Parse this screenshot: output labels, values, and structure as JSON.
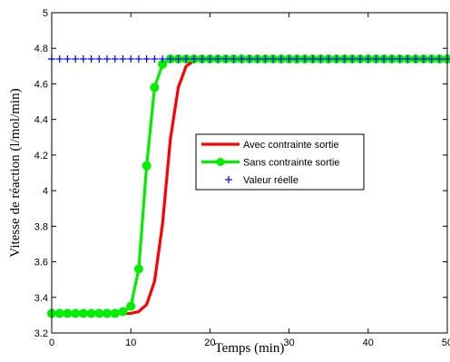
{
  "chart_data": {
    "type": "line",
    "title": "",
    "xlabel": "Temps (min)",
    "ylabel": "Vitesse de réaction (l/mol/min)",
    "xlim": [
      0,
      50
    ],
    "ylim": [
      3.2,
      5
    ],
    "xticks": [
      0,
      10,
      20,
      30,
      40,
      50
    ],
    "xtick_labels": [
      "0",
      "10",
      "20",
      "30",
      "40",
      "50"
    ],
    "yticks": [
      3.2,
      3.4,
      3.6,
      3.8,
      4,
      4.2,
      4.4,
      4.6,
      4.8,
      5
    ],
    "ytick_labels": [
      "3.2",
      "3.4",
      "3.6",
      "3.8",
      "4",
      "4.2",
      "4.4",
      "4.6",
      "4.8",
      "5"
    ],
    "grid": false,
    "legend_position": "center-right",
    "series": [
      {
        "name": "Avec contrainte sortie",
        "color": "#ff0000",
        "marker": "none",
        "x": [
          0,
          1,
          2,
          3,
          4,
          5,
          6,
          7,
          8,
          9,
          10,
          11,
          12,
          13,
          14,
          15,
          16,
          17,
          18,
          19,
          20,
          21,
          22,
          23,
          24,
          25,
          26,
          27,
          28,
          29,
          30,
          31,
          32,
          33,
          34,
          35,
          36,
          37,
          38,
          39,
          40,
          41,
          42,
          43,
          44,
          45,
          46,
          47,
          48,
          49,
          50
        ],
        "y": [
          3.31,
          3.31,
          3.31,
          3.31,
          3.31,
          3.31,
          3.31,
          3.31,
          3.31,
          3.31,
          3.31,
          3.32,
          3.36,
          3.49,
          3.81,
          4.29,
          4.58,
          4.7,
          4.73,
          4.74,
          4.74,
          4.74,
          4.74,
          4.74,
          4.74,
          4.74,
          4.74,
          4.74,
          4.74,
          4.74,
          4.74,
          4.74,
          4.74,
          4.74,
          4.74,
          4.74,
          4.74,
          4.74,
          4.74,
          4.74,
          4.74,
          4.74,
          4.74,
          4.74,
          4.74,
          4.74,
          4.74,
          4.74,
          4.74,
          4.74,
          4.74
        ]
      },
      {
        "name": "Sans contrainte sortie",
        "color": "#00ee00",
        "marker": "circle",
        "x": [
          0,
          1,
          2,
          3,
          4,
          5,
          6,
          7,
          8,
          9,
          10,
          11,
          12,
          13,
          14,
          15,
          16,
          17,
          18,
          19,
          20,
          21,
          22,
          23,
          24,
          25,
          26,
          27,
          28,
          29,
          30,
          31,
          32,
          33,
          34,
          35,
          36,
          37,
          38,
          39,
          40,
          41,
          42,
          43,
          44,
          45,
          46,
          47,
          48,
          49,
          50
        ],
        "y": [
          3.31,
          3.31,
          3.31,
          3.31,
          3.31,
          3.31,
          3.31,
          3.31,
          3.31,
          3.32,
          3.35,
          3.56,
          4.14,
          4.58,
          4.71,
          4.74,
          4.74,
          4.74,
          4.74,
          4.74,
          4.74,
          4.74,
          4.74,
          4.74,
          4.74,
          4.74,
          4.74,
          4.74,
          4.74,
          4.74,
          4.74,
          4.74,
          4.74,
          4.74,
          4.74,
          4.74,
          4.74,
          4.74,
          4.74,
          4.74,
          4.74,
          4.74,
          4.74,
          4.74,
          4.74,
          4.74,
          4.74,
          4.74,
          4.74,
          4.74,
          4.74
        ]
      },
      {
        "name": "Valeur réelle",
        "color": "#0000ff",
        "marker": "plus",
        "x": [
          0,
          1,
          2,
          3,
          4,
          5,
          6,
          7,
          8,
          9,
          10,
          11,
          12,
          13,
          14,
          15,
          16,
          17,
          18,
          19,
          20,
          21,
          22,
          23,
          24,
          25,
          26,
          27,
          28,
          29,
          30,
          31,
          32,
          33,
          34,
          35,
          36,
          37,
          38,
          39,
          40,
          41,
          42,
          43,
          44,
          45,
          46,
          47,
          48,
          49,
          50
        ],
        "y": [
          4.74,
          4.74,
          4.74,
          4.74,
          4.74,
          4.74,
          4.74,
          4.74,
          4.74,
          4.74,
          4.74,
          4.74,
          4.74,
          4.74,
          4.74,
          4.74,
          4.74,
          4.74,
          4.74,
          4.74,
          4.74,
          4.74,
          4.74,
          4.74,
          4.74,
          4.74,
          4.74,
          4.74,
          4.74,
          4.74,
          4.74,
          4.74,
          4.74,
          4.74,
          4.74,
          4.74,
          4.74,
          4.74,
          4.74,
          4.74,
          4.74,
          4.74,
          4.74,
          4.74,
          4.74,
          4.74,
          4.74,
          4.74,
          4.74,
          4.74,
          4.74
        ]
      }
    ]
  }
}
